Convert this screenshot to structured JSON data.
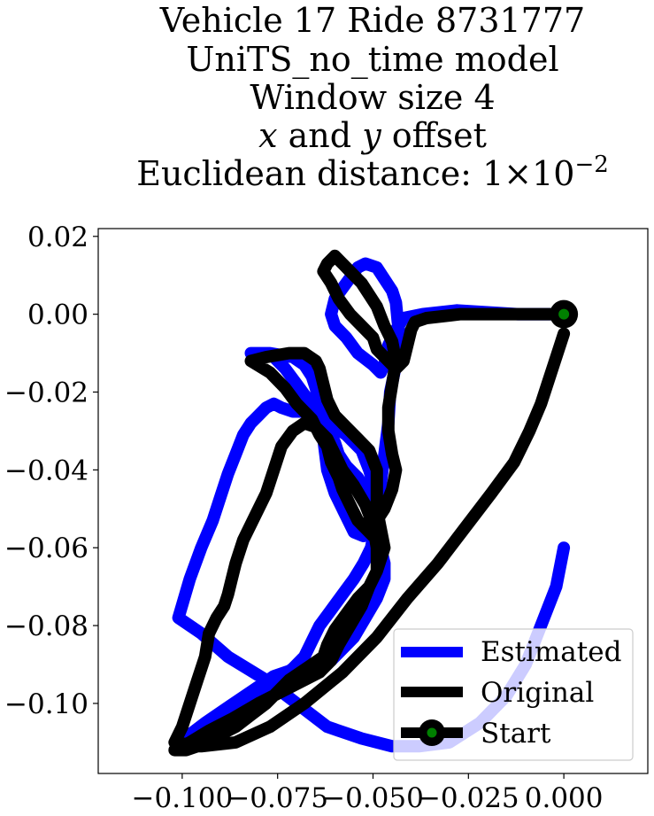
{
  "chart_data": {
    "type": "line",
    "title_lines": [
      "Vehicle 17 Ride 8731777",
      "UniTS_no_time model",
      "Window size 4",
      "x and y offset",
      "Euclidean distance: 1 × 10−2"
    ],
    "title_parts": {
      "x_symbol": "x",
      "and_text": " and ",
      "y_symbol": "y",
      "offset_text": " offset",
      "distance_prefix": "Euclidean distance: ",
      "distance_mantissa": "1",
      "times_symbol": "×",
      "distance_base": "10",
      "distance_exponent": "−2"
    },
    "xlabel": "",
    "ylabel": "",
    "xlim": [
      -0.122,
      0.022
    ],
    "ylim": [
      -0.118,
      0.022
    ],
    "x_ticks": [
      -0.1,
      -0.075,
      -0.05,
      -0.025,
      0.0
    ],
    "x_tick_labels": [
      "−0.100",
      "−0.075",
      "−0.050",
      "−0.025",
      "0.000"
    ],
    "y_ticks": [
      0.02,
      0.0,
      -0.02,
      -0.04,
      -0.06,
      -0.08,
      -0.1
    ],
    "y_tick_labels": [
      "0.02",
      "0.00",
      "−0.02",
      "−0.04",
      "−0.06",
      "−0.08",
      "−0.10"
    ],
    "grid": false,
    "legend_position": "lower-right",
    "series": [
      {
        "name": "Estimated",
        "color": "#0000ff",
        "x": [
          0.0,
          -0.012,
          -0.028,
          -0.037,
          -0.042,
          -0.044,
          -0.046,
          -0.047,
          -0.048,
          -0.05,
          -0.054,
          -0.057,
          -0.06,
          -0.061,
          -0.06,
          -0.057,
          -0.054,
          -0.052,
          -0.049,
          -0.047,
          -0.045,
          -0.044,
          -0.0435,
          -0.043,
          -0.0435,
          -0.044,
          -0.0455,
          -0.046,
          -0.047,
          -0.048,
          -0.0505,
          -0.0525,
          -0.055,
          -0.057,
          -0.06,
          -0.062,
          -0.0625,
          -0.063,
          -0.064,
          -0.065,
          -0.067,
          -0.07,
          -0.073,
          -0.076,
          -0.079,
          -0.082,
          -0.077,
          -0.071,
          -0.068,
          -0.066,
          -0.065,
          -0.064,
          -0.062,
          -0.06,
          -0.057,
          -0.053,
          -0.051,
          -0.0495,
          -0.049,
          -0.0495,
          -0.0505,
          -0.0525,
          -0.055,
          -0.058,
          -0.061,
          -0.064,
          -0.066,
          -0.068,
          -0.071,
          -0.075,
          -0.079,
          -0.083,
          -0.087,
          -0.09,
          -0.094,
          -0.097,
          -0.1,
          -0.101,
          -0.098,
          -0.094,
          -0.088,
          -0.082,
          -0.076,
          -0.07,
          -0.064,
          -0.061,
          -0.059,
          -0.055,
          -0.052,
          -0.049,
          -0.047,
          -0.047,
          -0.048,
          -0.049,
          -0.05,
          -0.052,
          -0.054,
          -0.057,
          -0.059,
          -0.06,
          -0.061,
          -0.062,
          -0.065,
          -0.068,
          -0.071,
          -0.074,
          -0.076,
          -0.078,
          -0.08,
          -0.082,
          -0.084,
          -0.086,
          -0.088,
          -0.09,
          -0.092,
          -0.095,
          -0.098,
          -0.101,
          -0.095,
          -0.088,
          -0.078,
          -0.07,
          -0.062,
          -0.053,
          -0.045,
          -0.038,
          -0.03,
          -0.022,
          -0.015,
          -0.01,
          -0.006,
          -0.002,
          0.0
        ],
        "y": [
          0.0,
          0.0,
          0.001,
          0.0,
          -0.001,
          -0.004,
          -0.008,
          -0.013,
          -0.015,
          -0.013,
          -0.01,
          -0.006,
          -0.003,
          0.0,
          0.004,
          0.008,
          0.012,
          0.013,
          0.012,
          0.009,
          0.006,
          0.003,
          -0.002,
          -0.005,
          -0.009,
          -0.013,
          -0.02,
          -0.028,
          -0.036,
          -0.044,
          -0.052,
          -0.057,
          -0.056,
          -0.052,
          -0.046,
          -0.04,
          -0.036,
          -0.032,
          -0.028,
          -0.025,
          -0.022,
          -0.018,
          -0.014,
          -0.011,
          -0.01,
          -0.01,
          -0.01,
          -0.011,
          -0.013,
          -0.016,
          -0.019,
          -0.023,
          -0.026,
          -0.029,
          -0.031,
          -0.035,
          -0.04,
          -0.045,
          -0.05,
          -0.055,
          -0.06,
          -0.064,
          -0.068,
          -0.072,
          -0.076,
          -0.08,
          -0.084,
          -0.088,
          -0.091,
          -0.094,
          -0.097,
          -0.1,
          -0.103,
          -0.105,
          -0.108,
          -0.11,
          -0.111,
          -0.111,
          -0.108,
          -0.105,
          -0.101,
          -0.097,
          -0.093,
          -0.091,
          -0.09,
          -0.089,
          -0.087,
          -0.083,
          -0.078,
          -0.073,
          -0.068,
          -0.064,
          -0.06,
          -0.055,
          -0.05,
          -0.045,
          -0.042,
          -0.039,
          -0.036,
          -0.033,
          -0.031,
          -0.028,
          -0.026,
          -0.025,
          -0.025,
          -0.024,
          -0.023,
          -0.024,
          -0.026,
          -0.028,
          -0.031,
          -0.036,
          -0.041,
          -0.047,
          -0.053,
          -0.06,
          -0.068,
          -0.078,
          -0.082,
          -0.088,
          -0.094,
          -0.1,
          -0.106,
          -0.109,
          -0.111,
          -0.111,
          -0.11,
          -0.105,
          -0.098,
          -0.09,
          -0.08,
          -0.07,
          -0.06
        ]
      },
      {
        "name": "Original",
        "color": "#000000",
        "x": [
          0.0,
          -0.013,
          -0.027,
          -0.036,
          -0.039,
          -0.04,
          -0.041,
          -0.042,
          -0.044,
          -0.045,
          -0.047,
          -0.049,
          -0.05,
          -0.053,
          -0.056,
          -0.059,
          -0.061,
          -0.063,
          -0.062,
          -0.06,
          -0.058,
          -0.055,
          -0.053,
          -0.051,
          -0.049,
          -0.047,
          -0.045,
          -0.044,
          -0.045,
          -0.046,
          -0.046,
          -0.045,
          -0.044,
          -0.045,
          -0.047,
          -0.049,
          -0.05,
          -0.051,
          -0.054,
          -0.056,
          -0.058,
          -0.059,
          -0.06,
          -0.061,
          -0.0615,
          -0.062,
          -0.064,
          -0.066,
          -0.07,
          -0.073,
          -0.077,
          -0.082,
          -0.078,
          -0.072,
          -0.068,
          -0.065,
          -0.064,
          -0.063,
          -0.062,
          -0.06,
          -0.057,
          -0.054,
          -0.051,
          -0.049,
          -0.049,
          -0.049,
          -0.048,
          -0.047,
          -0.049,
          -0.051,
          -0.054,
          -0.057,
          -0.06,
          -0.062,
          -0.063,
          -0.066,
          -0.069,
          -0.072,
          -0.075,
          -0.078,
          -0.082,
          -0.086,
          -0.09,
          -0.093,
          -0.096,
          -0.099,
          -0.102,
          -0.098,
          -0.093,
          -0.087,
          -0.08,
          -0.072,
          -0.064,
          -0.061,
          -0.059,
          -0.056,
          -0.053,
          -0.051,
          -0.049,
          -0.049,
          -0.05,
          -0.052,
          -0.055,
          -0.058,
          -0.06,
          -0.062,
          -0.065,
          -0.068,
          -0.071,
          -0.074,
          -0.076,
          -0.078,
          -0.081,
          -0.084,
          -0.086,
          -0.087,
          -0.088,
          -0.089,
          -0.091,
          -0.093,
          -0.094,
          -0.096,
          -0.098,
          -0.1,
          -0.102,
          -0.095,
          -0.086,
          -0.077,
          -0.068,
          -0.058,
          -0.049,
          -0.041,
          -0.033,
          -0.026,
          -0.019,
          -0.013,
          -0.009,
          -0.006,
          -0.004,
          -0.002,
          0.0
        ],
        "y": [
          0.0,
          0.0,
          0.0,
          -0.001,
          -0.002,
          -0.004,
          -0.008,
          -0.012,
          -0.014,
          -0.013,
          -0.011,
          -0.009,
          -0.006,
          -0.003,
          0.0,
          0.004,
          0.008,
          0.011,
          0.013,
          0.015,
          0.013,
          0.01,
          0.008,
          0.005,
          0.002,
          -0.003,
          -0.007,
          -0.012,
          -0.018,
          -0.024,
          -0.03,
          -0.036,
          -0.04,
          -0.045,
          -0.05,
          -0.053,
          -0.057,
          -0.056,
          -0.053,
          -0.049,
          -0.045,
          -0.042,
          -0.04,
          -0.038,
          -0.036,
          -0.034,
          -0.031,
          -0.027,
          -0.023,
          -0.019,
          -0.015,
          -0.012,
          -0.011,
          -0.01,
          -0.01,
          -0.012,
          -0.014,
          -0.018,
          -0.022,
          -0.026,
          -0.029,
          -0.032,
          -0.035,
          -0.04,
          -0.045,
          -0.05,
          -0.055,
          -0.06,
          -0.066,
          -0.07,
          -0.073,
          -0.077,
          -0.081,
          -0.085,
          -0.088,
          -0.09,
          -0.092,
          -0.094,
          -0.097,
          -0.1,
          -0.103,
          -0.106,
          -0.108,
          -0.11,
          -0.111,
          -0.112,
          -0.112,
          -0.11,
          -0.107,
          -0.104,
          -0.1,
          -0.096,
          -0.092,
          -0.089,
          -0.085,
          -0.08,
          -0.075,
          -0.07,
          -0.066,
          -0.06,
          -0.054,
          -0.049,
          -0.044,
          -0.04,
          -0.036,
          -0.032,
          -0.029,
          -0.028,
          -0.03,
          -0.034,
          -0.04,
          -0.046,
          -0.052,
          -0.058,
          -0.064,
          -0.068,
          -0.072,
          -0.075,
          -0.078,
          -0.082,
          -0.088,
          -0.094,
          -0.1,
          -0.106,
          -0.11,
          -0.111,
          -0.11,
          -0.106,
          -0.1,
          -0.092,
          -0.083,
          -0.073,
          -0.064,
          -0.055,
          -0.046,
          -0.038,
          -0.03,
          -0.023,
          -0.017,
          -0.011,
          -0.005
        ]
      }
    ],
    "start_point": {
      "name": "Start",
      "x": 0.0,
      "y": 0.0,
      "marker_color": "#000000",
      "inner_color": "#008000"
    }
  }
}
